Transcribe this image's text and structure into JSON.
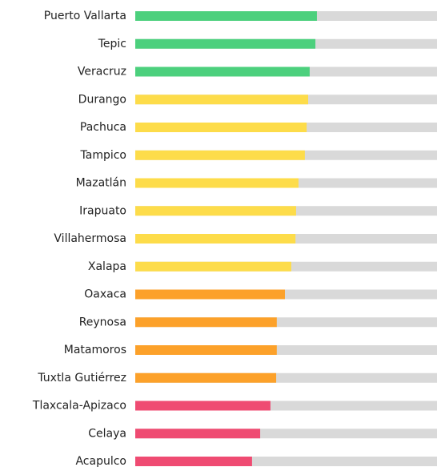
{
  "chart_data": {
    "type": "bar",
    "orientation": "horizontal",
    "categories": [
      "Puerto Vallarta",
      "Tepic",
      "Veracruz",
      "Durango",
      "Pachuca",
      "Tampico",
      "Mazatlán",
      "Irapuato",
      "Villahermosa",
      "Xalapa",
      "Oaxaca",
      "Reynosa",
      "Matamoros",
      "Tuxtla Gutiérrez",
      "Tlaxcala-Apizaco",
      "Celaya",
      "Acapulco"
    ],
    "values": [
      60.2,
      59.7,
      57.8,
      57.3,
      56.8,
      56.2,
      54.1,
      53.3,
      53.1,
      51.7,
      49.6,
      46.9,
      46.9,
      46.7,
      44.8,
      41.4,
      38.7
    ],
    "colors": [
      "#4cd07d",
      "#4cd07d",
      "#4cd07d",
      "#fddc4a",
      "#fddc4a",
      "#fddc4a",
      "#fddc4a",
      "#fddc4a",
      "#fddc4a",
      "#fddc4a",
      "#fca12a",
      "#fca12a",
      "#fca12a",
      "#fca12a",
      "#ef4b72",
      "#ef4b72",
      "#ef4b72"
    ],
    "track_color": "#d9d9d9",
    "xlim": [
      0,
      100
    ]
  }
}
